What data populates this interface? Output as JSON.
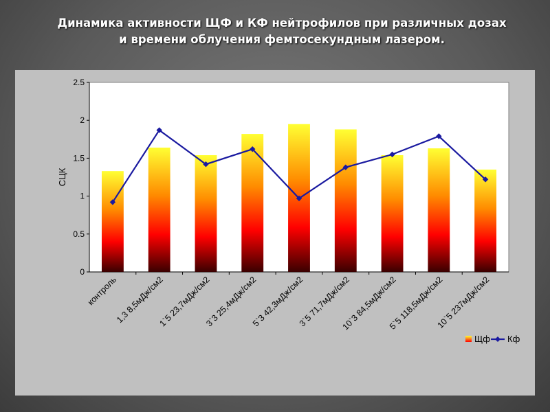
{
  "title": {
    "line1": "Динамика активности ЩФ и КФ нейтрофилов при различных дозах",
    "line2": "и времени облучения фемтосекундным лазером."
  },
  "chart_data": {
    "type": "bar",
    "title": "",
    "ylabel": "СЦК",
    "xlabel": "",
    "ylim": [
      0,
      2.5
    ],
    "yticks": [
      "0",
      "0.5",
      "1",
      "1.5",
      "2",
      "2.5"
    ],
    "categories": [
      "контроль",
      "1,3 8,5мДж/см2",
      "1`5 23,7мДж/см2",
      "3`3 25,4мДж/см2",
      "5`3 42,3мДж/см2",
      "3`5 71,7мДж/см2",
      "10`3 84,5мДж/см2",
      "5`5 118,5мДж/см2",
      "10`5 237мДж/см2"
    ],
    "series": [
      {
        "name": "Щф",
        "kind": "bar",
        "values": [
          1.33,
          1.64,
          1.54,
          1.82,
          1.95,
          1.88,
          1.54,
          1.63,
          1.35
        ]
      },
      {
        "name": "Кф",
        "kind": "line",
        "values": [
          0.92,
          1.87,
          1.42,
          1.62,
          0.97,
          1.38,
          1.55,
          1.79,
          1.22
        ]
      }
    ],
    "grid": false,
    "legend_position": "bottom-right",
    "colors": {
      "bar_top": "#ffff33",
      "bar_mid": "#ff8c00",
      "bar_red": "#ff0000",
      "bar_bottom": "#3a0000",
      "line": "#1a1aa0"
    }
  }
}
